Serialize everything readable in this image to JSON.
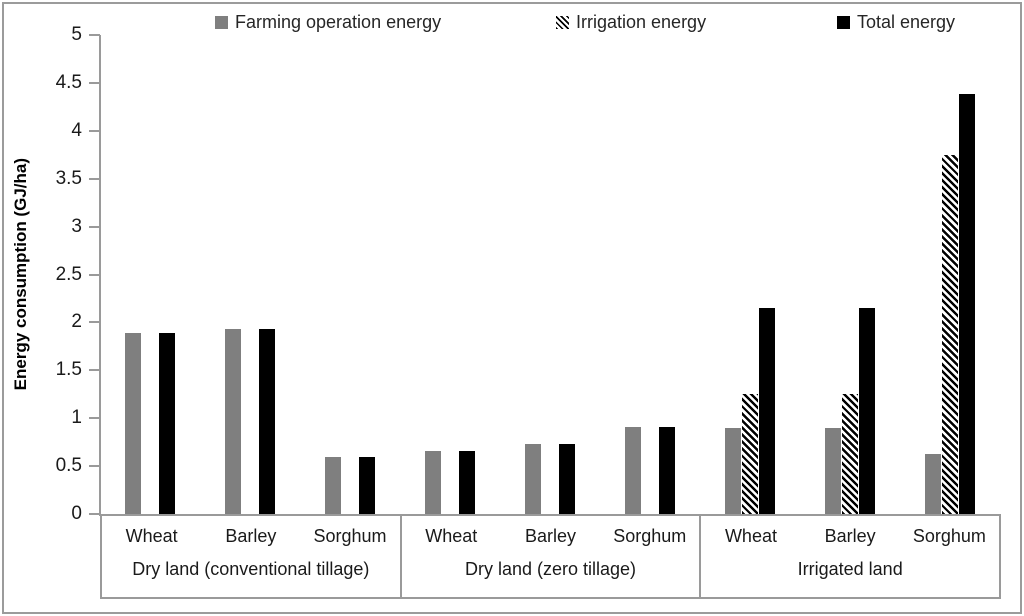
{
  "chart_data": {
    "type": "bar",
    "title": "",
    "ylabel": "Energy consumption (GJ/ha)",
    "xlabel": "",
    "ylim": [
      0,
      5
    ],
    "yticks": [
      0,
      0.5,
      1,
      1.5,
      2,
      2.5,
      3,
      3.5,
      4,
      4.5,
      5
    ],
    "grid": false,
    "legend_position": "top",
    "axis_color": "#9a9a9a",
    "groups": [
      {
        "label": "Dry land (conventional tillage)",
        "categories": [
          "Wheat",
          "Barley",
          "Sorghum"
        ]
      },
      {
        "label": "Dry land (zero tillage)",
        "categories": [
          "Wheat",
          "Barley",
          "Sorghum"
        ]
      },
      {
        "label": "Irrigated land",
        "categories": [
          "Wheat",
          "Barley",
          "Sorghum"
        ]
      }
    ],
    "series": [
      {
        "name": "Farming operation energy",
        "color": "#7f7f7f",
        "pattern": "solid",
        "values": [
          1.89,
          1.93,
          0.6,
          0.66,
          0.73,
          0.91,
          0.9,
          0.9,
          0.63
        ]
      },
      {
        "name": "Irrigation energy",
        "color": "#000000",
        "pattern": "diagonal-hatch",
        "values": [
          0,
          0,
          0,
          0,
          0,
          0,
          1.25,
          1.25,
          3.75
        ]
      },
      {
        "name": "Total energy",
        "color": "#000000",
        "pattern": "solid",
        "values": [
          1.89,
          1.93,
          0.6,
          0.66,
          0.73,
          0.91,
          2.15,
          2.15,
          4.38
        ]
      }
    ]
  }
}
